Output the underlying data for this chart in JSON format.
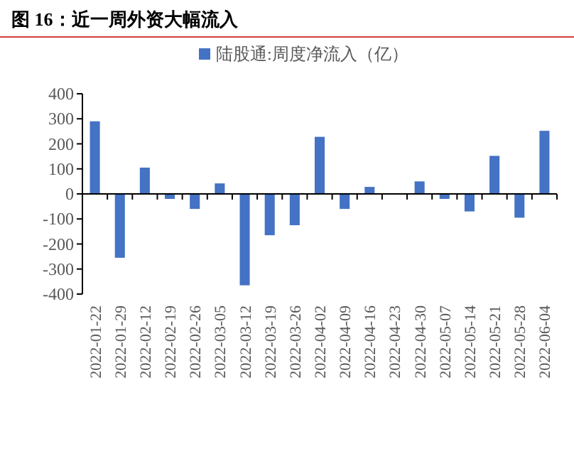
{
  "chart_data": {
    "type": "bar",
    "title": "图 16：近一周外资大幅流入",
    "categories": [
      "2022-01-22",
      "2022-01-29",
      "2022-02-12",
      "2022-02-19",
      "2022-02-26",
      "2022-03-05",
      "2022-03-12",
      "2022-03-19",
      "2022-03-26",
      "2022-04-02",
      "2022-04-09",
      "2022-04-16",
      "2022-04-23",
      "2022-04-30",
      "2022-05-07",
      "2022-05-14",
      "2022-05-21",
      "2022-05-28",
      "2022-06-04"
    ],
    "series": [
      {
        "name": "陆股通:周度净流入（亿）",
        "color": "#4472c4",
        "values": [
          290,
          -255,
          105,
          -20,
          -60,
          42,
          -365,
          -165,
          -125,
          228,
          -60,
          28,
          null,
          50,
          -20,
          -70,
          152,
          -95,
          252
        ]
      }
    ],
    "ylim": [
      -400,
      400
    ],
    "yticks": [
      -400,
      -300,
      -200,
      -100,
      0,
      100,
      200,
      300,
      400
    ],
    "legend": "top"
  }
}
